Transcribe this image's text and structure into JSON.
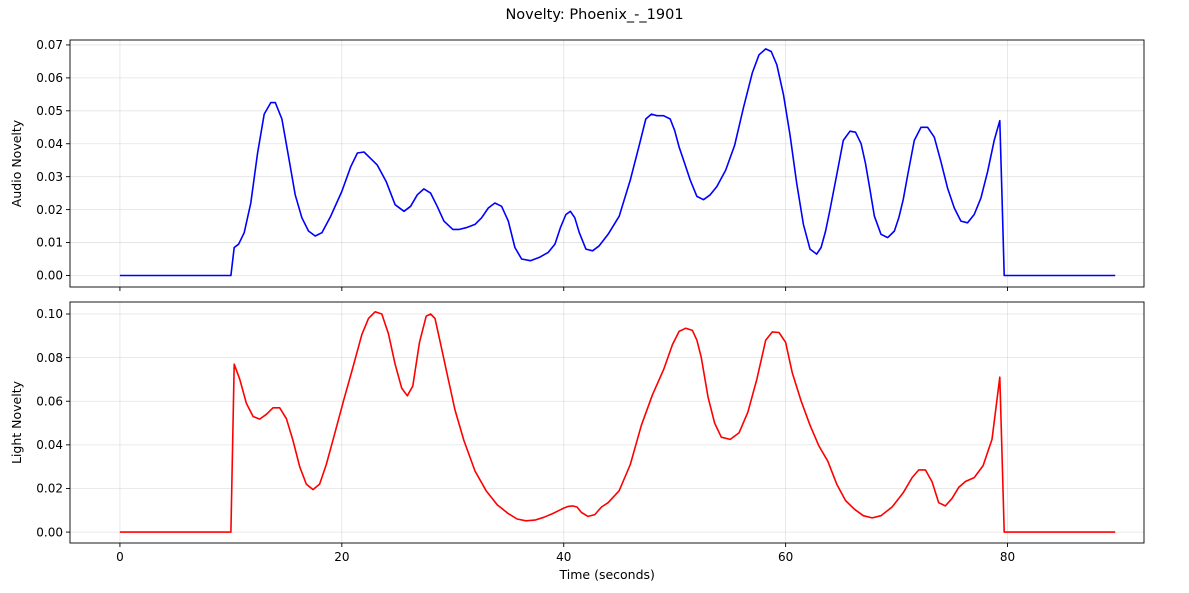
{
  "chart_data": {
    "title": "Novelty: Phoenix_-_1901",
    "xlabel": "Time (seconds)",
    "xlim": [
      -4.5,
      92.3
    ],
    "xticks": [
      0,
      20,
      40,
      60,
      80
    ],
    "type": "line",
    "grid": true,
    "panels": [
      {
        "ylabel": "Audio Novelty",
        "ylim": [
          -0.0035,
          0.0715
        ],
        "yticks": [
          0.0,
          0.01,
          0.02,
          0.03,
          0.04,
          0.05,
          0.06,
          0.07
        ],
        "ytick_labels": [
          "0.00",
          "0.01",
          "0.02",
          "0.03",
          "0.04",
          "0.05",
          "0.06",
          "0.07"
        ],
        "show_xtick_labels": false,
        "color": "#0000ff",
        "series": [
          {
            "x": [
              0,
              10,
              10.3,
              10.7,
              11.2,
              11.8,
              12.4,
              13.0,
              13.6,
              14.0,
              14.6,
              15.2,
              15.8,
              16.4,
              17.0,
              17.6,
              18.2,
              19.0,
              20.0,
              20.8,
              21.4,
              22.0,
              22.6,
              23.2,
              24.0,
              24.8,
              25.6,
              26.2,
              26.8,
              27.4,
              28.0,
              28.6,
              29.2,
              30.0,
              30.6,
              31.2,
              32.0,
              32.6,
              33.2,
              33.8,
              34.4,
              35.0,
              35.6,
              36.2,
              37.0,
              37.8,
              38.6,
              39.2,
              39.7,
              40.2,
              40.6,
              41.0,
              41.4,
              42.0,
              42.6,
              43.2,
              44.0,
              45.0,
              46.0,
              46.8,
              47.4,
              47.9,
              48.4,
              49.0,
              49.6,
              50.0,
              50.4,
              50.8,
              51.4,
              52.0,
              52.6,
              53.2,
              53.8,
              54.6,
              55.4,
              56.2,
              57.0,
              57.6,
              58.2,
              58.7,
              59.2,
              59.8,
              60.4,
              61.0,
              61.6,
              62.2,
              62.8,
              63.2,
              63.6,
              64.0,
              64.6,
              65.2,
              65.8,
              66.3,
              66.8,
              67.2,
              67.6,
              68.0,
              68.6,
              69.2,
              69.8,
              70.2,
              70.6,
              71.0,
              71.6,
              72.2,
              72.8,
              73.4,
              74.0,
              74.6,
              75.2,
              75.8,
              76.4,
              77.0,
              77.6,
              78.2,
              78.8,
              79.3,
              79.5,
              79.7,
              89.7
            ],
            "y": [
              0.0,
              0.0,
              0.0085,
              0.0095,
              0.013,
              0.022,
              0.037,
              0.049,
              0.0525,
              0.0525,
              0.0475,
              0.036,
              0.0245,
              0.0175,
              0.0135,
              0.012,
              0.013,
              0.018,
              0.0255,
              0.033,
              0.0372,
              0.0375,
              0.0355,
              0.0335,
              0.0285,
              0.0215,
              0.0195,
              0.021,
              0.0245,
              0.0263,
              0.025,
              0.021,
              0.0165,
              0.014,
              0.014,
              0.0145,
              0.0155,
              0.0175,
              0.0205,
              0.022,
              0.021,
              0.0165,
              0.0085,
              0.005,
              0.0045,
              0.0055,
              0.007,
              0.0095,
              0.0145,
              0.0185,
              0.0195,
              0.0175,
              0.013,
              0.008,
              0.0075,
              0.009,
              0.0125,
              0.018,
              0.029,
              0.0395,
              0.0475,
              0.049,
              0.0485,
              0.0485,
              0.0475,
              0.044,
              0.039,
              0.035,
              0.029,
              0.024,
              0.023,
              0.0245,
              0.027,
              0.032,
              0.0395,
              0.051,
              0.0615,
              0.067,
              0.0688,
              0.068,
              0.064,
              0.055,
              0.0425,
              0.028,
              0.0155,
              0.008,
              0.0065,
              0.0085,
              0.0135,
              0.02,
              0.0305,
              0.041,
              0.0438,
              0.0435,
              0.04,
              0.034,
              0.026,
              0.018,
              0.0125,
              0.0115,
              0.0135,
              0.0175,
              0.023,
              0.0305,
              0.041,
              0.045,
              0.045,
              0.042,
              0.0345,
              0.0265,
              0.0205,
              0.0165,
              0.016,
              0.0185,
              0.0235,
              0.0315,
              0.041,
              0.047,
              0.024,
              0.0,
              0.0
            ]
          }
        ]
      },
      {
        "ylabel": "Light Novelty",
        "ylim": [
          -0.005,
          0.1055
        ],
        "yticks": [
          0.0,
          0.02,
          0.04,
          0.06,
          0.08,
          0.1
        ],
        "ytick_labels": [
          "0.00",
          "0.02",
          "0.04",
          "0.06",
          "0.08",
          "0.10"
        ],
        "show_xtick_labels": true,
        "color": "#ff0000",
        "series": [
          {
            "x": [
              0,
              10,
              10.3,
              10.8,
              11.4,
              12.0,
              12.6,
              13.2,
              13.8,
              14.4,
              15.0,
              15.6,
              16.2,
              16.8,
              17.4,
              18.0,
              18.6,
              19.4,
              20.2,
              21.0,
              21.8,
              22.4,
              23.0,
              23.6,
              24.2,
              24.8,
              25.4,
              25.9,
              26.4,
              27.0,
              27.6,
              28.0,
              28.4,
              29.0,
              29.6,
              30.2,
              31.0,
              32.0,
              33.0,
              34.0,
              35.0,
              35.8,
              36.6,
              37.4,
              38.2,
              39.0,
              39.6,
              40.0,
              40.4,
              40.8,
              41.2,
              41.6,
              42.2,
              42.8,
              43.4,
              44.0,
              45.0,
              46.0,
              47.0,
              48.0,
              49.0,
              49.8,
              50.4,
              51.0,
              51.6,
              52.0,
              52.4,
              53.0,
              53.6,
              54.2,
              55.0,
              55.8,
              56.6,
              57.4,
              58.2,
              58.8,
              59.4,
              60.0,
              60.6,
              61.4,
              62.2,
              63.0,
              63.8,
              64.6,
              65.4,
              66.2,
              67.0,
              67.8,
              68.6,
              69.6,
              70.6,
              71.4,
              72.0,
              72.6,
              73.2,
              73.8,
              74.4,
              75.0,
              75.6,
              76.2,
              77.0,
              77.8,
              78.6,
              79.3,
              79.5,
              79.7,
              89.7
            ],
            "y": [
              0.0,
              0.0,
              0.077,
              0.07,
              0.059,
              0.053,
              0.0518,
              0.054,
              0.057,
              0.057,
              0.052,
              0.042,
              0.03,
              0.022,
              0.0195,
              0.022,
              0.031,
              0.046,
              0.061,
              0.0755,
              0.0905,
              0.098,
              0.101,
              0.1,
              0.091,
              0.077,
              0.066,
              0.0625,
              0.067,
              0.087,
              0.099,
              0.1,
              0.098,
              0.084,
              0.07,
              0.056,
              0.042,
              0.028,
              0.019,
              0.0125,
              0.0085,
              0.006,
              0.0052,
              0.0055,
              0.0068,
              0.0085,
              0.01,
              0.011,
              0.0118,
              0.012,
              0.0115,
              0.009,
              0.0072,
              0.008,
              0.0115,
              0.0135,
              0.019,
              0.031,
              0.049,
              0.063,
              0.0745,
              0.086,
              0.092,
              0.0935,
              0.0925,
              0.088,
              0.08,
              0.062,
              0.05,
              0.0435,
              0.0425,
              0.0455,
              0.055,
              0.07,
              0.088,
              0.0918,
              0.0915,
              0.087,
              0.073,
              0.06,
              0.049,
              0.0395,
              0.0325,
              0.022,
              0.0145,
              0.0105,
              0.0075,
              0.0065,
              0.0075,
              0.0115,
              0.018,
              0.025,
              0.0285,
              0.0285,
              0.023,
              0.0135,
              0.012,
              0.0155,
              0.0205,
              0.0232,
              0.025,
              0.0305,
              0.0425,
              0.071,
              0.036,
              0.0,
              0.0
            ]
          }
        ]
      }
    ]
  }
}
